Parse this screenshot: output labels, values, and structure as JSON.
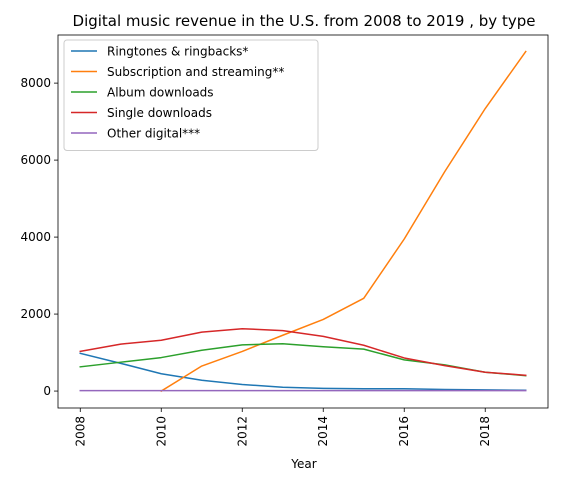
{
  "chart_data": {
    "type": "line",
    "title": "Digital music revenue in the U.S. from 2008 to 2019 , by type",
    "xlabel": "Year",
    "ylabel": "",
    "x": [
      2008,
      2009,
      2010,
      2011,
      2012,
      2013,
      2014,
      2015,
      2016,
      2017,
      2018,
      2019
    ],
    "xlim": [
      2007.45,
      2019.55
    ],
    "ylim": [
      -440,
      9250
    ],
    "xticks": [
      2008,
      2010,
      2012,
      2014,
      2016,
      2018
    ],
    "yticks": [
      0,
      2000,
      4000,
      6000,
      8000
    ],
    "grid": false,
    "legend_position": "top-left",
    "series": [
      {
        "name": "Ringtones & ringbacks*",
        "color": "#1f77b4",
        "values": [
          980,
          720,
          450,
          280,
          170,
          100,
          70,
          60,
          60,
          40,
          30,
          20
        ]
      },
      {
        "name": "Subscription and streaming**",
        "color": "#ff7f0e",
        "values": [
          null,
          null,
          0,
          650,
          1030,
          1450,
          1860,
          2410,
          3950,
          5700,
          7340,
          8820
        ]
      },
      {
        "name": "Album downloads",
        "color": "#2ca02c",
        "values": [
          630,
          750,
          870,
          1060,
          1200,
          1230,
          1150,
          1090,
          810,
          680,
          490,
          400
        ]
      },
      {
        "name": "Single downloads",
        "color": "#d62728",
        "values": [
          1030,
          1220,
          1320,
          1530,
          1620,
          1570,
          1420,
          1190,
          860,
          660,
          490,
          410
        ]
      },
      {
        "name": "Other digital***",
        "color": "#9467bd",
        "values": [
          10,
          10,
          10,
          10,
          10,
          10,
          10,
          10,
          10,
          10,
          10,
          10
        ]
      }
    ]
  }
}
